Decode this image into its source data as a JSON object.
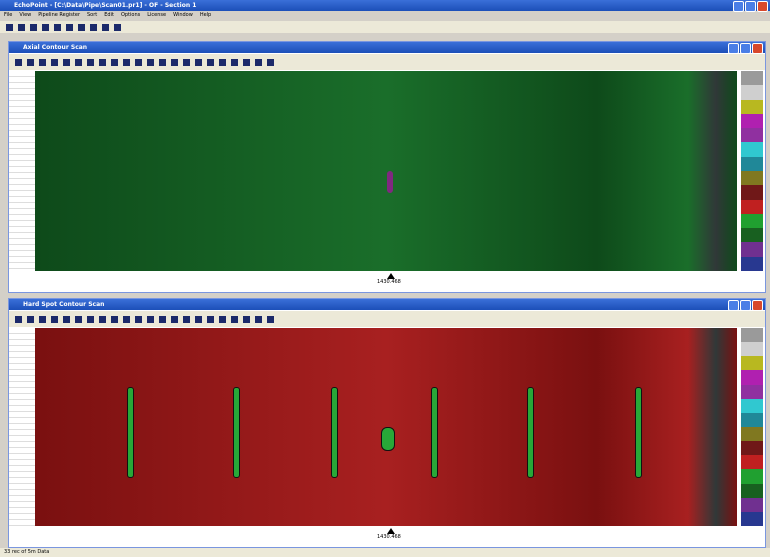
{
  "app_title": "EchoPoint - [C:\\Data\\Pipe\\Scan01.pr1] - OF - Section 1",
  "menu": [
    "File",
    "View",
    "Pipeline Register",
    "Sort",
    "Edit",
    "Options",
    "License",
    "Window",
    "Help"
  ],
  "windows": [
    {
      "title": "Axial Contour Scan",
      "marker": "1430.468"
    },
    {
      "title": "Hard Spot Contour Scan",
      "marker": "1430.468"
    }
  ],
  "status": "33 rec of 5m Data"
}
